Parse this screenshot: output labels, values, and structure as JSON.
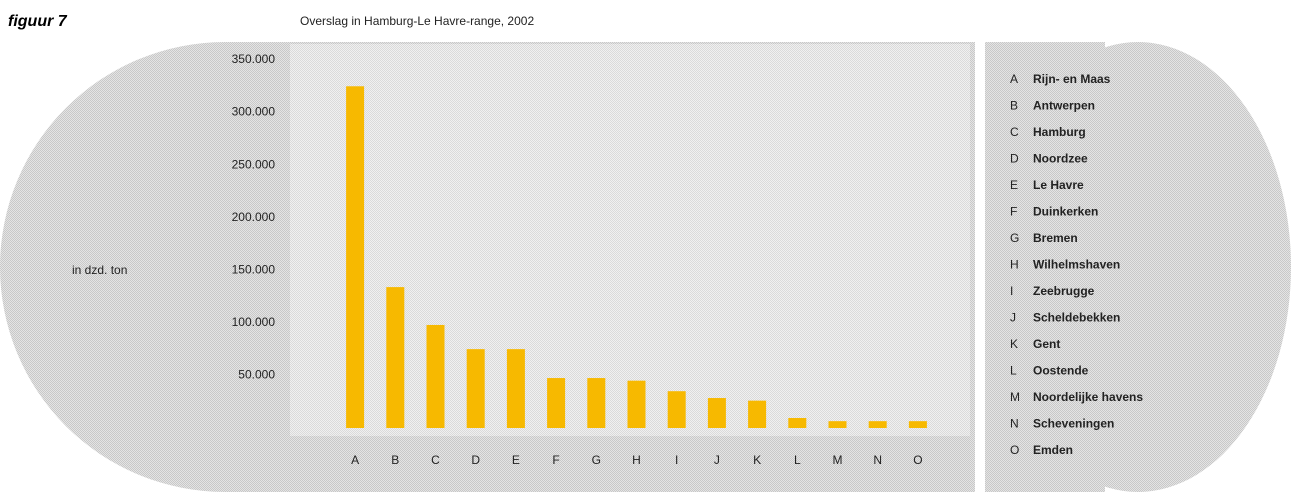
{
  "chart_data": {
    "type": "bar",
    "figure_label": "figuur 7",
    "title": "Overslag in Hamburg-Le Havre-range, 2002",
    "y_label": "in dzd. ton",
    "categories": [
      "A",
      "B",
      "C",
      "D",
      "E",
      "F",
      "G",
      "H",
      "I",
      "J",
      "K",
      "L",
      "M",
      "N",
      "O"
    ],
    "values": [
      325000,
      134000,
      98000,
      75000,
      75000,
      47500,
      47500,
      45000,
      35000,
      28500,
      26000,
      9500,
      6500,
      6500,
      6500
    ],
    "color": "#f7b900",
    "ylim": [
      0,
      350000
    ],
    "yticks": [
      {
        "value": 50000,
        "label": "50.000"
      },
      {
        "value": 100000,
        "label": "100.000"
      },
      {
        "value": 150000,
        "label": "150.000"
      },
      {
        "value": 200000,
        "label": "200.000"
      },
      {
        "value": 250000,
        "label": "250.000"
      },
      {
        "value": 300000,
        "label": "300.000"
      },
      {
        "value": 350000,
        "label": "350.000"
      }
    ],
    "legend": [
      {
        "key": "A",
        "label": "Rijn- en Maas"
      },
      {
        "key": "B",
        "label": "Antwerpen"
      },
      {
        "key": "C",
        "label": "Hamburg"
      },
      {
        "key": "D",
        "label": "Noordzee"
      },
      {
        "key": "E",
        "label": "Le Havre"
      },
      {
        "key": "F",
        "label": "Duinkerken"
      },
      {
        "key": "G",
        "label": "Bremen"
      },
      {
        "key": "H",
        "label": "Wilhelmshaven"
      },
      {
        "key": "I",
        "label": "Zeebrugge"
      },
      {
        "key": "J",
        "label": "Scheldebekken"
      },
      {
        "key": "K",
        "label": "Gent"
      },
      {
        "key": "L",
        "label": "Oostende"
      },
      {
        "key": "M",
        "label": "Noordelijke havens"
      },
      {
        "key": "N",
        "label": "Scheveningen"
      },
      {
        "key": "O",
        "label": "Emden"
      }
    ]
  }
}
